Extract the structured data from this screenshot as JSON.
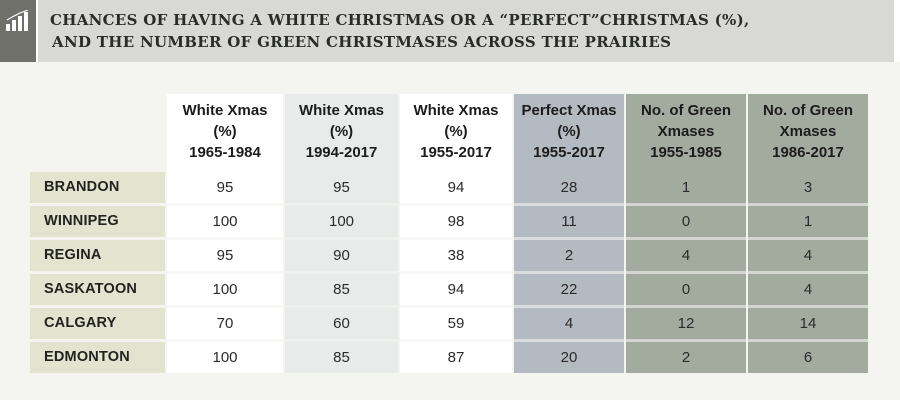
{
  "header": {
    "icon": "bar-chart-icon",
    "title_line1": "CHANCES OF HAVING A WHITE CHRISTMAS OR A “PERFECT”CHRISTMAS (%),",
    "title_line2": "AND THE NUMBER OF GREEN CHRISTMASES ACROSS THE PRAIRIES"
  },
  "colors": {
    "col_white": "#ffffff",
    "col_light_gray": "#e9eaea",
    "col_blue_gray": "#b4bac1",
    "col_sage": "#a3ab9f",
    "row_label_bg": "#e2e4d0"
  },
  "chart_data": {
    "type": "table",
    "title": "CHANCES OF HAVING A WHITE CHRISTMAS OR A “PERFECT”CHRISTMAS (%), AND THE NUMBER OF GREEN CHRISTMASES ACROSS THE PRAIRIES",
    "columns": [
      {
        "lines": [
          "White Xmas",
          "(%)",
          "1965-1984"
        ]
      },
      {
        "lines": [
          "White Xmas",
          "(%)",
          "1994-2017"
        ]
      },
      {
        "lines": [
          "White Xmas",
          "(%)",
          "1955-2017"
        ]
      },
      {
        "lines": [
          "Perfect Xmas",
          "(%)",
          "1955-2017"
        ]
      },
      {
        "lines": [
          "No. of Green",
          "Xmases",
          "1955-1985"
        ]
      },
      {
        "lines": [
          "No. of Green",
          "Xmases",
          "1986-2017"
        ]
      }
    ],
    "rows": [
      {
        "label": "BRANDON",
        "values": [
          95,
          95,
          94,
          28,
          1,
          3
        ]
      },
      {
        "label": "WINNIPEG",
        "values": [
          100,
          100,
          98,
          11,
          0,
          1
        ]
      },
      {
        "label": "REGINA",
        "values": [
          95,
          90,
          38,
          2,
          4,
          4
        ]
      },
      {
        "label": "SASKATOON",
        "values": [
          100,
          85,
          94,
          22,
          0,
          4
        ]
      },
      {
        "label": "CALGARY",
        "values": [
          70,
          60,
          59,
          4,
          12,
          14
        ]
      },
      {
        "label": "EDMONTON",
        "values": [
          100,
          85,
          87,
          20,
          2,
          6
        ]
      }
    ]
  }
}
